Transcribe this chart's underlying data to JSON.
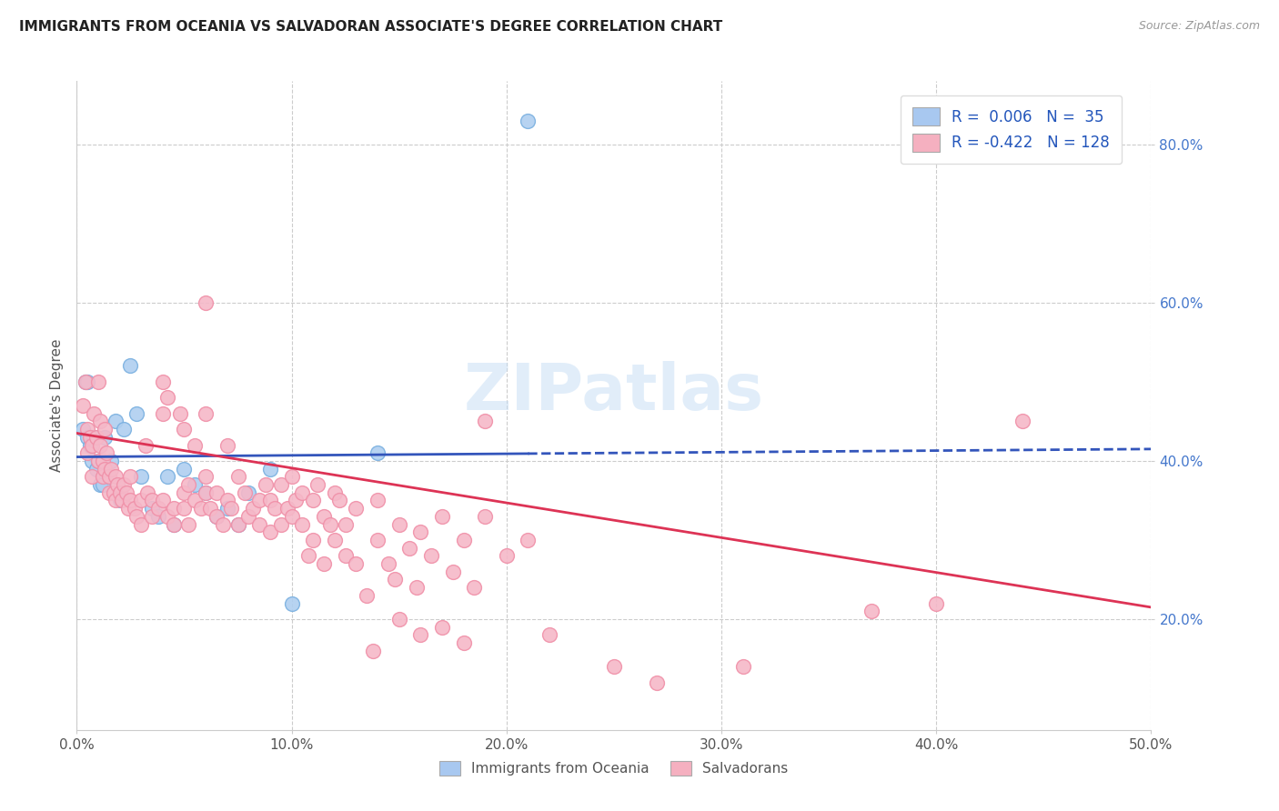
{
  "title": "IMMIGRANTS FROM OCEANIA VS SALVADORAN ASSOCIATE'S DEGREE CORRELATION CHART",
  "source": "Source: ZipAtlas.com",
  "ylabel": "Associate's Degree",
  "y_ticks": [
    0.2,
    0.4,
    0.6,
    0.8
  ],
  "y_tick_labels": [
    "20.0%",
    "40.0%",
    "60.0%",
    "80.0%"
  ],
  "xlim": [
    0.0,
    0.5
  ],
  "ylim": [
    0.06,
    0.88
  ],
  "blue_scatter_color": "#7ab0e0",
  "pink_scatter_color": "#f090a8",
  "blue_line_color": "#3355bb",
  "pink_line_color": "#dd3355",
  "blue_dot_color": "#b0cff0",
  "pink_dot_color": "#f5b8c8",
  "background_color": "#ffffff",
  "grid_color": "#cccccc",
  "watermark": "ZIPatlas",
  "blue_line_y0": 0.405,
  "blue_line_y1": 0.415,
  "pink_line_y0": 0.435,
  "pink_line_y1": 0.215,
  "legend_label_blue": "R =  0.006   N =  35",
  "legend_label_pink": "R = -0.422   N = 128",
  "legend_color_blue": "#a8c8f0",
  "legend_color_pink": "#f5b0c0",
  "bottom_legend_label_blue": "Immigrants from Oceania",
  "bottom_legend_label_pink": "Salvadorans",
  "blue_points": [
    [
      0.003,
      0.44
    ],
    [
      0.004,
      0.5
    ],
    [
      0.005,
      0.5
    ],
    [
      0.005,
      0.43
    ],
    [
      0.006,
      0.42
    ],
    [
      0.007,
      0.4
    ],
    [
      0.008,
      0.43
    ],
    [
      0.009,
      0.39
    ],
    [
      0.01,
      0.4
    ],
    [
      0.011,
      0.37
    ],
    [
      0.012,
      0.37
    ],
    [
      0.013,
      0.43
    ],
    [
      0.015,
      0.38
    ],
    [
      0.016,
      0.4
    ],
    [
      0.018,
      0.45
    ],
    [
      0.02,
      0.35
    ],
    [
      0.022,
      0.44
    ],
    [
      0.025,
      0.52
    ],
    [
      0.028,
      0.46
    ],
    [
      0.03,
      0.38
    ],
    [
      0.035,
      0.34
    ],
    [
      0.038,
      0.33
    ],
    [
      0.042,
      0.38
    ],
    [
      0.045,
      0.32
    ],
    [
      0.05,
      0.39
    ],
    [
      0.055,
      0.37
    ],
    [
      0.06,
      0.36
    ],
    [
      0.065,
      0.33
    ],
    [
      0.07,
      0.34
    ],
    [
      0.075,
      0.32
    ],
    [
      0.08,
      0.36
    ],
    [
      0.09,
      0.39
    ],
    [
      0.1,
      0.22
    ],
    [
      0.14,
      0.41
    ],
    [
      0.21,
      0.83
    ]
  ],
  "pink_points": [
    [
      0.003,
      0.47
    ],
    [
      0.004,
      0.5
    ],
    [
      0.005,
      0.44
    ],
    [
      0.005,
      0.41
    ],
    [
      0.006,
      0.43
    ],
    [
      0.007,
      0.42
    ],
    [
      0.007,
      0.38
    ],
    [
      0.008,
      0.46
    ],
    [
      0.009,
      0.43
    ],
    [
      0.01,
      0.5
    ],
    [
      0.01,
      0.4
    ],
    [
      0.011,
      0.45
    ],
    [
      0.011,
      0.42
    ],
    [
      0.012,
      0.4
    ],
    [
      0.012,
      0.38
    ],
    [
      0.013,
      0.44
    ],
    [
      0.013,
      0.39
    ],
    [
      0.014,
      0.41
    ],
    [
      0.015,
      0.38
    ],
    [
      0.015,
      0.36
    ],
    [
      0.016,
      0.39
    ],
    [
      0.017,
      0.36
    ],
    [
      0.018,
      0.35
    ],
    [
      0.018,
      0.38
    ],
    [
      0.019,
      0.37
    ],
    [
      0.02,
      0.36
    ],
    [
      0.021,
      0.35
    ],
    [
      0.022,
      0.37
    ],
    [
      0.023,
      0.36
    ],
    [
      0.024,
      0.34
    ],
    [
      0.025,
      0.38
    ],
    [
      0.025,
      0.35
    ],
    [
      0.027,
      0.34
    ],
    [
      0.028,
      0.33
    ],
    [
      0.03,
      0.32
    ],
    [
      0.03,
      0.35
    ],
    [
      0.032,
      0.42
    ],
    [
      0.033,
      0.36
    ],
    [
      0.035,
      0.35
    ],
    [
      0.035,
      0.33
    ],
    [
      0.038,
      0.34
    ],
    [
      0.04,
      0.5
    ],
    [
      0.04,
      0.46
    ],
    [
      0.04,
      0.35
    ],
    [
      0.042,
      0.33
    ],
    [
      0.042,
      0.48
    ],
    [
      0.045,
      0.34
    ],
    [
      0.045,
      0.32
    ],
    [
      0.048,
      0.46
    ],
    [
      0.05,
      0.44
    ],
    [
      0.05,
      0.36
    ],
    [
      0.05,
      0.34
    ],
    [
      0.052,
      0.32
    ],
    [
      0.052,
      0.37
    ],
    [
      0.055,
      0.35
    ],
    [
      0.055,
      0.42
    ],
    [
      0.058,
      0.34
    ],
    [
      0.06,
      0.6
    ],
    [
      0.06,
      0.46
    ],
    [
      0.06,
      0.38
    ],
    [
      0.06,
      0.36
    ],
    [
      0.062,
      0.34
    ],
    [
      0.065,
      0.33
    ],
    [
      0.065,
      0.36
    ],
    [
      0.068,
      0.32
    ],
    [
      0.07,
      0.35
    ],
    [
      0.07,
      0.42
    ],
    [
      0.072,
      0.34
    ],
    [
      0.075,
      0.32
    ],
    [
      0.075,
      0.38
    ],
    [
      0.078,
      0.36
    ],
    [
      0.08,
      0.33
    ],
    [
      0.082,
      0.34
    ],
    [
      0.085,
      0.35
    ],
    [
      0.085,
      0.32
    ],
    [
      0.088,
      0.37
    ],
    [
      0.09,
      0.35
    ],
    [
      0.09,
      0.31
    ],
    [
      0.092,
      0.34
    ],
    [
      0.095,
      0.32
    ],
    [
      0.095,
      0.37
    ],
    [
      0.098,
      0.34
    ],
    [
      0.1,
      0.38
    ],
    [
      0.1,
      0.33
    ],
    [
      0.102,
      0.35
    ],
    [
      0.105,
      0.32
    ],
    [
      0.105,
      0.36
    ],
    [
      0.108,
      0.28
    ],
    [
      0.11,
      0.35
    ],
    [
      0.11,
      0.3
    ],
    [
      0.112,
      0.37
    ],
    [
      0.115,
      0.33
    ],
    [
      0.115,
      0.27
    ],
    [
      0.118,
      0.32
    ],
    [
      0.12,
      0.36
    ],
    [
      0.12,
      0.3
    ],
    [
      0.122,
      0.35
    ],
    [
      0.125,
      0.28
    ],
    [
      0.125,
      0.32
    ],
    [
      0.13,
      0.34
    ],
    [
      0.13,
      0.27
    ],
    [
      0.135,
      0.23
    ],
    [
      0.138,
      0.16
    ],
    [
      0.14,
      0.35
    ],
    [
      0.14,
      0.3
    ],
    [
      0.145,
      0.27
    ],
    [
      0.148,
      0.25
    ],
    [
      0.15,
      0.32
    ],
    [
      0.15,
      0.2
    ],
    [
      0.155,
      0.29
    ],
    [
      0.158,
      0.24
    ],
    [
      0.16,
      0.31
    ],
    [
      0.16,
      0.18
    ],
    [
      0.165,
      0.28
    ],
    [
      0.17,
      0.33
    ],
    [
      0.17,
      0.19
    ],
    [
      0.175,
      0.26
    ],
    [
      0.18,
      0.3
    ],
    [
      0.18,
      0.17
    ],
    [
      0.185,
      0.24
    ],
    [
      0.19,
      0.33
    ],
    [
      0.19,
      0.45
    ],
    [
      0.2,
      0.28
    ],
    [
      0.21,
      0.3
    ],
    [
      0.22,
      0.18
    ],
    [
      0.25,
      0.14
    ],
    [
      0.27,
      0.12
    ],
    [
      0.31,
      0.14
    ],
    [
      0.37,
      0.21
    ],
    [
      0.4,
      0.22
    ],
    [
      0.44,
      0.45
    ]
  ]
}
